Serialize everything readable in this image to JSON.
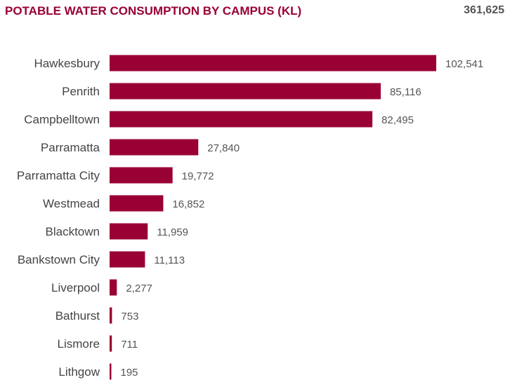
{
  "header": {
    "title": "POTABLE WATER CONSUMPTION BY CAMPUS (KL)",
    "total": "361,625"
  },
  "chart_data": {
    "type": "bar",
    "orientation": "horizontal",
    "title": "POTABLE WATER CONSUMPTION BY CAMPUS (KL)",
    "xlabel": "",
    "ylabel": "",
    "grid": false,
    "bar_color": "#990033",
    "categories": [
      "Hawkesbury",
      "Penrith",
      "Campbelltown",
      "Parramatta",
      "Parramatta City",
      "Westmead",
      "Blacktown",
      "Bankstown City",
      "Liverpool",
      "Bathurst",
      "Lismore",
      "Lithgow"
    ],
    "values": [
      102541,
      85116,
      82495,
      27840,
      19772,
      16852,
      11959,
      11113,
      2277,
      753,
      711,
      195
    ],
    "value_labels": [
      "102,541",
      "85,116",
      "82,495",
      "27,840",
      "19,772",
      "16,852",
      "11,959",
      "11,113",
      "2,277",
      "753",
      "711",
      "195"
    ]
  }
}
